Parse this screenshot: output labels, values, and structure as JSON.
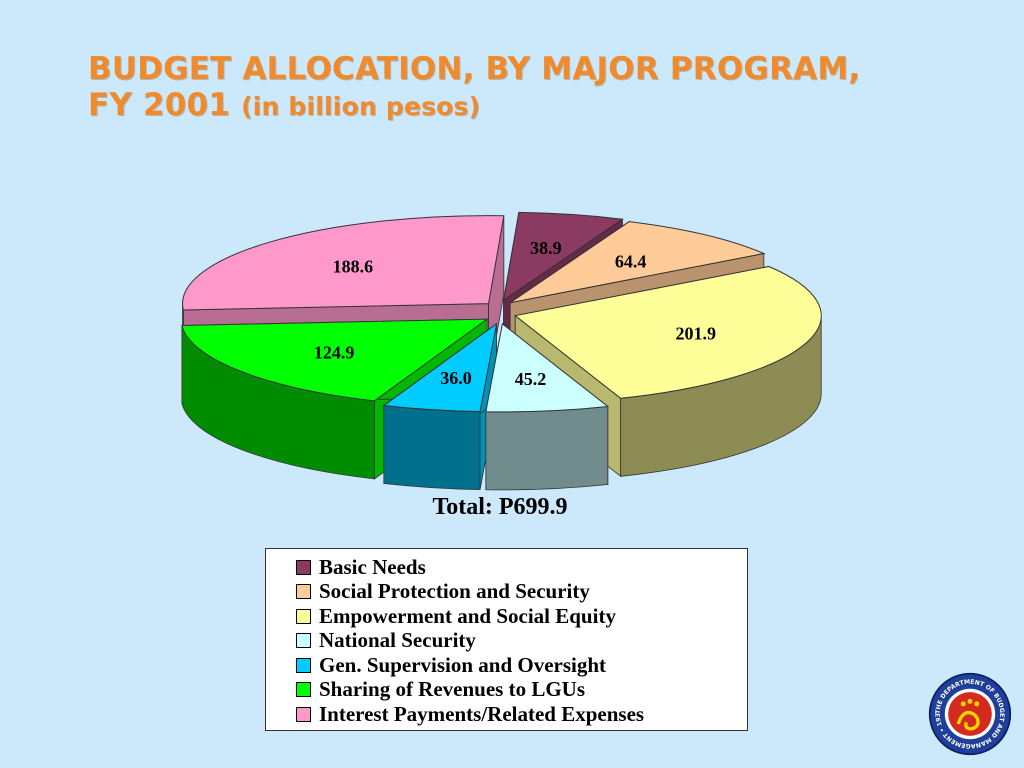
{
  "title": {
    "line1": "BUDGET ALLOCATION, BY MAJOR PROGRAM,",
    "line2_main": "FY 2001",
    "line2_sub": "(in billion pesos)"
  },
  "total_label": "Total: P699.9",
  "colors": {
    "background": "#cce8fb",
    "title": "#f08a2a"
  },
  "seal": {
    "ring_text": "THE DEPARTMENT OF BUDGET AND MANAGEMENT • 1936 •",
    "icon": "dbm-seal-icon"
  },
  "chart_data": {
    "type": "pie",
    "style": "3d-exploded",
    "title": "BUDGET ALLOCATION, BY MAJOR PROGRAM, FY 2001 (in billion pesos)",
    "unit": "billion pesos",
    "total": 699.9,
    "legend_position": "bottom",
    "slices": [
      {
        "label": "Basic Needs",
        "value": 38.9,
        "value_label": "38.9",
        "color": "#8b3a62"
      },
      {
        "label": "Social Protection and Security",
        "value": 64.4,
        "value_label": "64.4",
        "color": "#ffcc99"
      },
      {
        "label": "Empowerment and Social Equity",
        "value": 201.9,
        "value_label": "201.9",
        "color": "#ffff99"
      },
      {
        "label": "National Security",
        "value": 45.2,
        "value_label": "45.2",
        "color": "#ccffff"
      },
      {
        "label": "Gen. Supervision and Oversight",
        "value": 36.0,
        "value_label": "36.0",
        "color": "#00ccff"
      },
      {
        "label": "Sharing of Revenues to LGUs",
        "value": 124.9,
        "value_label": "124.9",
        "color": "#00ff00"
      },
      {
        "label": "Interest Payments/Related Expenses",
        "value": 188.6,
        "value_label": "188.6",
        "color": "#ff99cc"
      }
    ]
  }
}
